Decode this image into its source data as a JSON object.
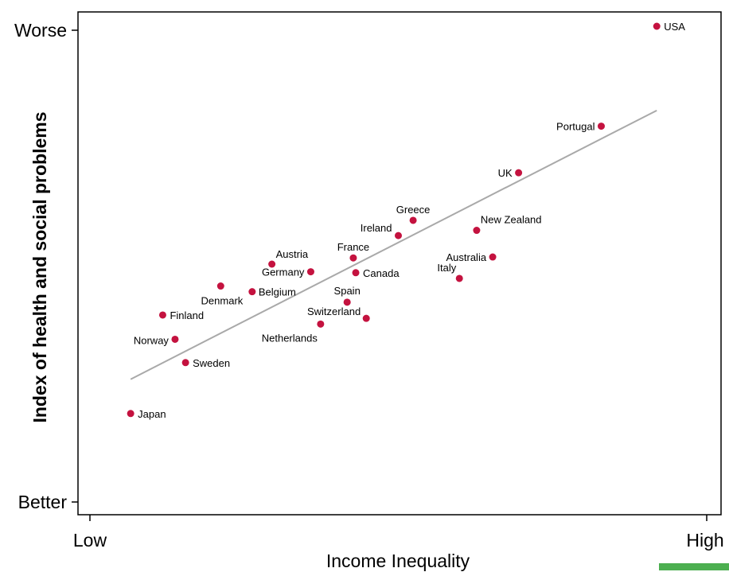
{
  "colors": {
    "point": "#c4123f",
    "trend": "#a9a9a9",
    "accent": "#4caf50"
  },
  "chart_data": {
    "type": "scatter",
    "xlabel": "Income Inequality",
    "ylabel": "Index of health and social problems",
    "xlim": [
      0,
      100
    ],
    "ylim": [
      0,
      100
    ],
    "x_tick_labels": {
      "low": "Low",
      "high": "High"
    },
    "y_tick_labels": {
      "low": "Better",
      "high": "Worse"
    },
    "grid": false,
    "legend": "none",
    "trendline": {
      "x": [
        6.6,
        91.9
      ],
      "y": [
        25.8,
        82.3
      ]
    },
    "points": [
      {
        "label": "USA",
        "x": 91.9,
        "y": 100.0
      },
      {
        "label": "Portugal",
        "x": 82.9,
        "y": 79.0
      },
      {
        "label": "UK",
        "x": 69.5,
        "y": 69.2
      },
      {
        "label": "Greece",
        "x": 52.4,
        "y": 59.2
      },
      {
        "label": "Ireland",
        "x": 50.0,
        "y": 56.0
      },
      {
        "label": "New Zealand",
        "x": 62.7,
        "y": 57.1
      },
      {
        "label": "Australia",
        "x": 65.3,
        "y": 51.5
      },
      {
        "label": "Italy",
        "x": 59.9,
        "y": 47.0
      },
      {
        "label": "France",
        "x": 42.7,
        "y": 51.3
      },
      {
        "label": "Canada",
        "x": 43.1,
        "y": 48.2
      },
      {
        "label": "Austria",
        "x": 29.5,
        "y": 50.0
      },
      {
        "label": "Germany",
        "x": 35.8,
        "y": 48.4
      },
      {
        "label": "Spain",
        "x": 41.7,
        "y": 42.0
      },
      {
        "label": "Switzerland",
        "x": 44.8,
        "y": 38.6
      },
      {
        "label": "Netherlands",
        "x": 37.4,
        "y": 37.4
      },
      {
        "label": "Denmark",
        "x": 21.2,
        "y": 45.4
      },
      {
        "label": "Belgium",
        "x": 26.3,
        "y": 44.2
      },
      {
        "label": "Finland",
        "x": 11.8,
        "y": 39.3
      },
      {
        "label": "Norway",
        "x": 13.8,
        "y": 34.2
      },
      {
        "label": "Sweden",
        "x": 15.5,
        "y": 29.3
      },
      {
        "label": "Japan",
        "x": 6.6,
        "y": 18.6
      }
    ]
  }
}
